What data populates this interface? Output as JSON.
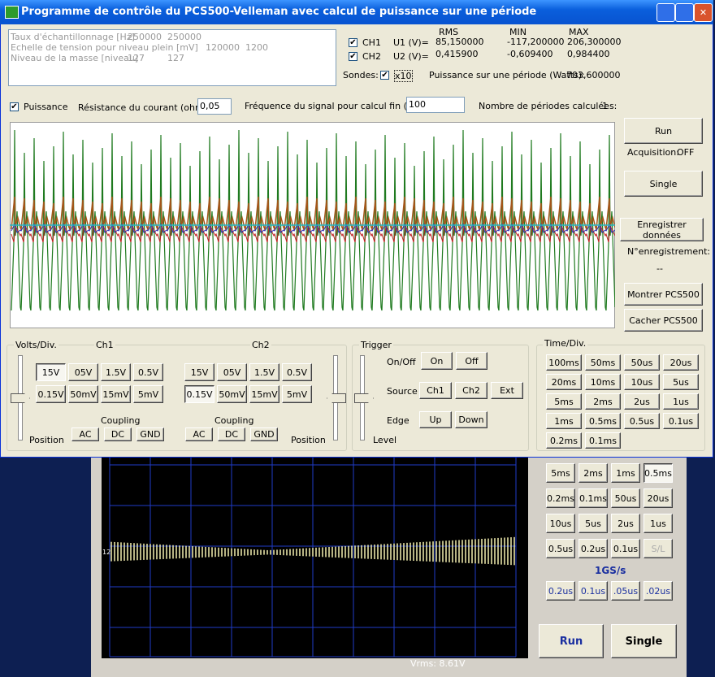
{
  "window": {
    "title": "Programme de contrôle du PCS500-Velleman avec calcul de puissance sur une période"
  },
  "info": {
    "rows": [
      [
        "Taux d'échantillonnage [Hz]",
        "250000",
        "250000"
      ],
      [
        "Echelle de tension pour niveau plein [mV]",
        "120000",
        "1200"
      ],
      [
        "Niveau de la masse [niveau]",
        "127",
        "127"
      ]
    ]
  },
  "measures": {
    "headers": [
      "RMS",
      "MIN",
      "MAX"
    ],
    "rows": [
      {
        "check": "CH1",
        "label": "U1 (V)=",
        "values": [
          "85,150000",
          "-117,200000",
          "206,300000"
        ]
      },
      {
        "check": "CH2",
        "label": "U2 (V)=",
        "values": [
          "0,415900",
          "-0,609400",
          "0,984400"
        ]
      }
    ],
    "probes_label": "Sondes:",
    "probes": "x10",
    "power_label": "Puissance sur une période (Watts):",
    "power": "703,600000"
  },
  "settings": {
    "power": "Puissance",
    "resistance_label": "Résistance du courant (ohms):",
    "resistance": "0,05",
    "frequency_label": "Fréquence du signal pour calcul fin (Hz):",
    "frequency": "100",
    "periods_label": "Nombre de périodes calculées:",
    "periods": "1"
  },
  "controls": {
    "run": "Run",
    "acquisition_label": "Acquisition:",
    "acquisition": "OFF",
    "single": "Single",
    "save": "Enregistrer données",
    "record_label": "N°enregistrement:",
    "record": "--",
    "show": "Montrer PCS500",
    "hide": "Cacher PCS500"
  },
  "volts": {
    "title": "Volts/Div.",
    "channels": [
      {
        "name": "Ch1",
        "buttons": [
          "15V",
          "05V",
          "1.5V",
          "0.5V",
          "0.15V",
          "50mV",
          "15mV",
          "5mV"
        ],
        "coupling": "Coupling",
        "coupling_buttons": [
          "AC",
          "DC",
          "GND"
        ],
        "position": "Position"
      },
      {
        "name": "Ch2",
        "buttons": [
          "15V",
          "05V",
          "1.5V",
          "0.5V",
          "0.15V",
          "50mV",
          "15mV",
          "5mV"
        ],
        "coupling": "Coupling",
        "coupling_buttons": [
          "AC",
          "DC",
          "GND"
        ],
        "position": "Position"
      }
    ]
  },
  "trigger": {
    "title": "Trigger",
    "onoff": "On/Off",
    "onoff_buttons": [
      "On",
      "Off"
    ],
    "source": "Source",
    "source_buttons": [
      "Ch1",
      "Ch2",
      "Ext"
    ],
    "edge": "Edge",
    "edge_buttons": [
      "Up",
      "Down"
    ],
    "level": "Level"
  },
  "timediv": {
    "title": "Time/Div.",
    "buttons": [
      "100ms",
      "50ms",
      "50us",
      "20us",
      "20ms",
      "10ms",
      "10us",
      "5us",
      "5ms",
      "2ms",
      "2us",
      "1us",
      "1ms",
      "0.5ms",
      "0.5us",
      "0.1us",
      "0.2ms",
      "0.1ms"
    ]
  },
  "background_app": {
    "buttons": [
      "5ms",
      "2ms",
      "1ms",
      "0.5ms",
      "0.2ms",
      "0.1ms",
      "50us",
      "20us",
      "10us",
      "5us",
      "2us",
      "1us",
      "0.5us",
      "0.2us",
      "0.1us",
      "S/L"
    ],
    "rate": "1GS/s",
    "fast_buttons": [
      "0.2us",
      "0.1us",
      ".05us",
      ".02us"
    ],
    "run": "Run",
    "single": "Single",
    "vrms": "Vrms: 8.61V",
    "marker": "12"
  }
}
